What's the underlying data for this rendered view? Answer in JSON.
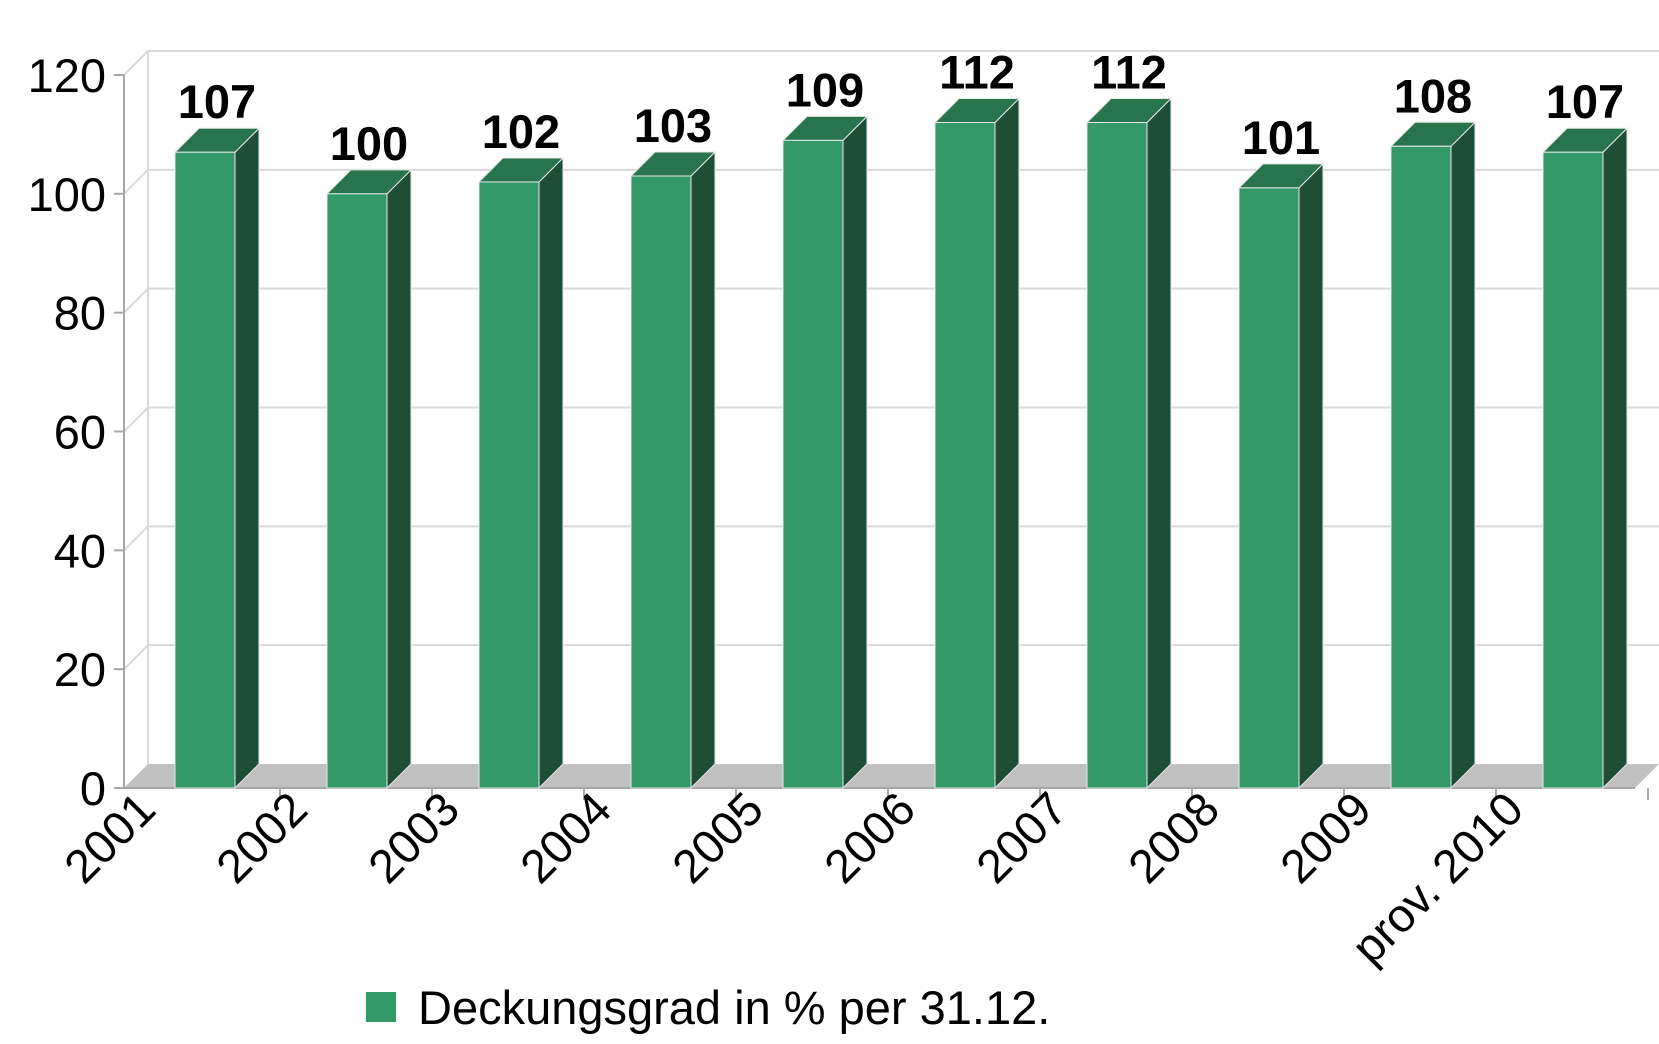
{
  "chart_data": {
    "type": "bar",
    "style": "3d-column",
    "categories": [
      "2001",
      "2002",
      "2003",
      "2004",
      "2005",
      "2006",
      "2007",
      "2008",
      "2009",
      "prov. 2010"
    ],
    "series": [
      {
        "name": "Deckungsgrad in % per 31.12.",
        "values": [
          107,
          100,
          102,
          103,
          109,
          112,
          112,
          101,
          108,
          107
        ],
        "data_labels": [
          "107",
          "100",
          "102",
          "103",
          "109",
          "112",
          "112",
          "101",
          "108",
          "107"
        ]
      }
    ],
    "ylim": [
      0,
      120
    ],
    "yticks": [
      "0",
      "20",
      "40",
      "60",
      "80",
      "100",
      "120"
    ],
    "xlabel": "",
    "ylabel": "",
    "grid": true,
    "legend": "bottom",
    "colors": {
      "bar_front": "#339966",
      "bar_side": "#1f4e36",
      "bar_top": "#28744d",
      "floor": "#c0c0c0",
      "grid": "#d9d9d9",
      "axis": "#a6a6a6",
      "text": "#000000"
    }
  }
}
